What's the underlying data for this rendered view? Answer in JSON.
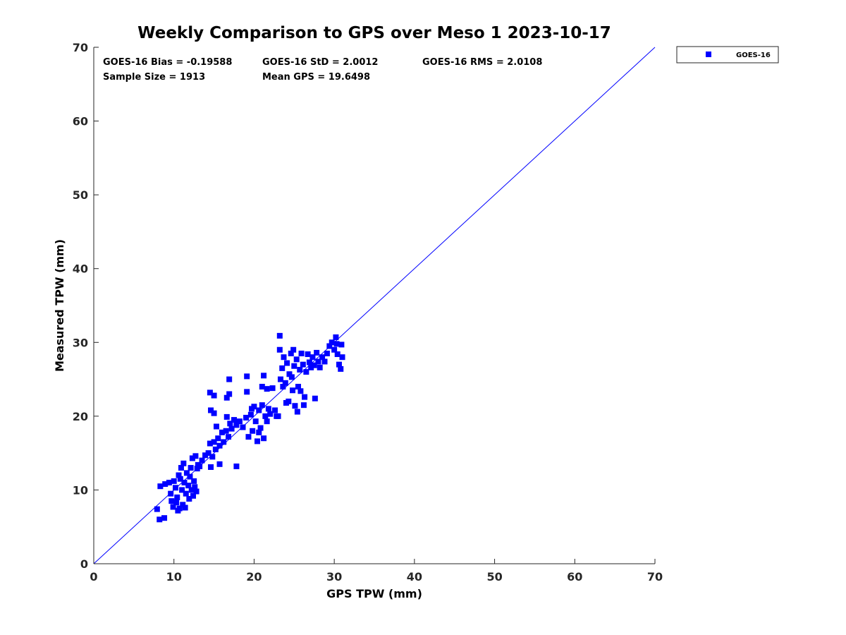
{
  "chart_data": {
    "type": "scatter",
    "title": "Weekly Comparison to GPS over Meso 1 2023-10-17",
    "xlabel": "GPS TPW (mm)",
    "ylabel": "Measured TPW (mm)",
    "xlim": [
      0,
      70
    ],
    "ylim": [
      0,
      70
    ],
    "xticks": [
      "0",
      "10",
      "20",
      "30",
      "40",
      "50",
      "60",
      "70"
    ],
    "yticks": [
      "0",
      "10",
      "20",
      "30",
      "40",
      "50",
      "60",
      "70"
    ],
    "grid": false,
    "legend": {
      "position": "outside-top-right",
      "entries": [
        "GOES-16"
      ]
    },
    "annotations": [
      "GOES-16 Bias = -0.19588",
      "GOES-16 StD = 2.0012",
      "GOES-16 RMS = 2.0108",
      "Sample Size = 1913",
      "Mean GPS = 19.6498"
    ],
    "reference_line": {
      "label": "1:1",
      "x": [
        0,
        70
      ],
      "y": [
        0,
        70
      ]
    },
    "colors": {
      "marker": "#0000ff",
      "line": "#0000ff"
    },
    "series": [
      {
        "name": "GOES-16",
        "points": [
          [
            7.9,
            7.4
          ],
          [
            8.2,
            6.0
          ],
          [
            8.8,
            6.2
          ],
          [
            8.3,
            10.5
          ],
          [
            8.9,
            10.8
          ],
          [
            9.4,
            11.0
          ],
          [
            9.6,
            9.5
          ],
          [
            9.7,
            8.5
          ],
          [
            9.9,
            7.7
          ],
          [
            10.0,
            11.2
          ],
          [
            10.2,
            10.3
          ],
          [
            10.4,
            9.0
          ],
          [
            10.5,
            7.2
          ],
          [
            10.6,
            12.0
          ],
          [
            10.8,
            11.5
          ],
          [
            10.9,
            13.0
          ],
          [
            11.0,
            10.0
          ],
          [
            11.1,
            8.0
          ],
          [
            11.2,
            13.6
          ],
          [
            11.3,
            11.0
          ],
          [
            11.5,
            9.5
          ],
          [
            11.6,
            12.3
          ],
          [
            11.8,
            10.6
          ],
          [
            11.9,
            8.8
          ],
          [
            12.0,
            11.8
          ],
          [
            12.2,
            10.0
          ],
          [
            12.4,
            9.2
          ],
          [
            12.5,
            11.2
          ],
          [
            12.6,
            10.4
          ],
          [
            12.8,
            9.8
          ],
          [
            10.3,
            8.3
          ],
          [
            10.7,
            7.5
          ],
          [
            11.4,
            7.6
          ],
          [
            12.1,
            13.0
          ],
          [
            12.3,
            14.3
          ],
          [
            12.7,
            14.6
          ],
          [
            13.0,
            13.4
          ],
          [
            12.9,
            12.9
          ],
          [
            13.2,
            13.2
          ],
          [
            13.5,
            14.0
          ],
          [
            13.9,
            14.7
          ],
          [
            14.3,
            15.0
          ],
          [
            14.5,
            16.3
          ],
          [
            14.8,
            14.5
          ],
          [
            15.0,
            16.5
          ],
          [
            15.2,
            15.5
          ],
          [
            15.5,
            17.0
          ],
          [
            15.7,
            16.0
          ],
          [
            16.0,
            17.8
          ],
          [
            16.2,
            16.5
          ],
          [
            16.5,
            18.0
          ],
          [
            16.8,
            17.2
          ],
          [
            17.0,
            19.0
          ],
          [
            17.2,
            18.3
          ],
          [
            17.5,
            19.5
          ],
          [
            17.8,
            18.8
          ],
          [
            15.3,
            18.6
          ],
          [
            16.6,
            19.9
          ],
          [
            14.6,
            13.1
          ],
          [
            15.7,
            13.5
          ],
          [
            17.8,
            13.2
          ],
          [
            14.5,
            23.2
          ],
          [
            14.6,
            20.8
          ],
          [
            15.0,
            20.4
          ],
          [
            15.0,
            22.8
          ],
          [
            16.9,
            25.0
          ],
          [
            16.6,
            22.5
          ],
          [
            16.9,
            23.0
          ],
          [
            19.1,
            25.4
          ],
          [
            19.1,
            23.3
          ],
          [
            21.2,
            25.5
          ],
          [
            18.2,
            19.3
          ],
          [
            18.6,
            18.5
          ],
          [
            19.0,
            19.8
          ],
          [
            19.3,
            17.2
          ],
          [
            19.6,
            20.2
          ],
          [
            19.8,
            18.0
          ],
          [
            20.0,
            21.3
          ],
          [
            20.2,
            19.3
          ],
          [
            20.4,
            16.6
          ],
          [
            20.6,
            20.8
          ],
          [
            20.8,
            18.4
          ],
          [
            21.0,
            21.5
          ],
          [
            21.2,
            17.0
          ],
          [
            21.4,
            20.0
          ],
          [
            21.6,
            19.3
          ],
          [
            21.8,
            21.0
          ],
          [
            22.0,
            20.3
          ],
          [
            22.3,
            23.8
          ],
          [
            22.6,
            20.8
          ],
          [
            22.8,
            20.0
          ],
          [
            21.0,
            24.0
          ],
          [
            21.6,
            23.7
          ],
          [
            20.6,
            17.8
          ],
          [
            19.7,
            21.0
          ],
          [
            23.0,
            20.0
          ],
          [
            23.3,
            25.0
          ],
          [
            23.5,
            26.5
          ],
          [
            23.7,
            28.0
          ],
          [
            23.9,
            24.5
          ],
          [
            24.1,
            27.2
          ],
          [
            24.3,
            22.0
          ],
          [
            24.4,
            25.7
          ],
          [
            24.6,
            28.5
          ],
          [
            24.8,
            23.5
          ],
          [
            25.0,
            26.8
          ],
          [
            25.1,
            21.4
          ],
          [
            25.3,
            27.7
          ],
          [
            25.5,
            24.0
          ],
          [
            25.7,
            26.3
          ],
          [
            25.9,
            28.5
          ],
          [
            26.1,
            27.0
          ],
          [
            26.3,
            22.6
          ],
          [
            26.5,
            26.0
          ],
          [
            26.7,
            28.4
          ],
          [
            26.9,
            27.3
          ],
          [
            27.1,
            26.6
          ],
          [
            27.3,
            28.0
          ],
          [
            27.5,
            26.9
          ],
          [
            27.6,
            22.4
          ],
          [
            27.8,
            28.6
          ],
          [
            28.0,
            27.4
          ],
          [
            28.2,
            26.6
          ],
          [
            28.5,
            28.0
          ],
          [
            23.2,
            30.9
          ],
          [
            23.2,
            29.0
          ],
          [
            24.9,
            29.0
          ],
          [
            25.4,
            20.6
          ],
          [
            26.2,
            21.5
          ],
          [
            24.0,
            21.8
          ],
          [
            23.6,
            24.0
          ],
          [
            25.8,
            23.4
          ],
          [
            24.7,
            25.3
          ],
          [
            28.8,
            27.4
          ],
          [
            29.1,
            28.5
          ],
          [
            29.4,
            29.5
          ],
          [
            29.7,
            30.0
          ],
          [
            30.0,
            29.0
          ],
          [
            30.2,
            30.7
          ],
          [
            30.4,
            28.4
          ],
          [
            30.6,
            27.0
          ],
          [
            30.8,
            26.4
          ],
          [
            30.9,
            29.7
          ],
          [
            31.0,
            28.0
          ],
          [
            30.3,
            29.8
          ]
        ]
      }
    ]
  }
}
